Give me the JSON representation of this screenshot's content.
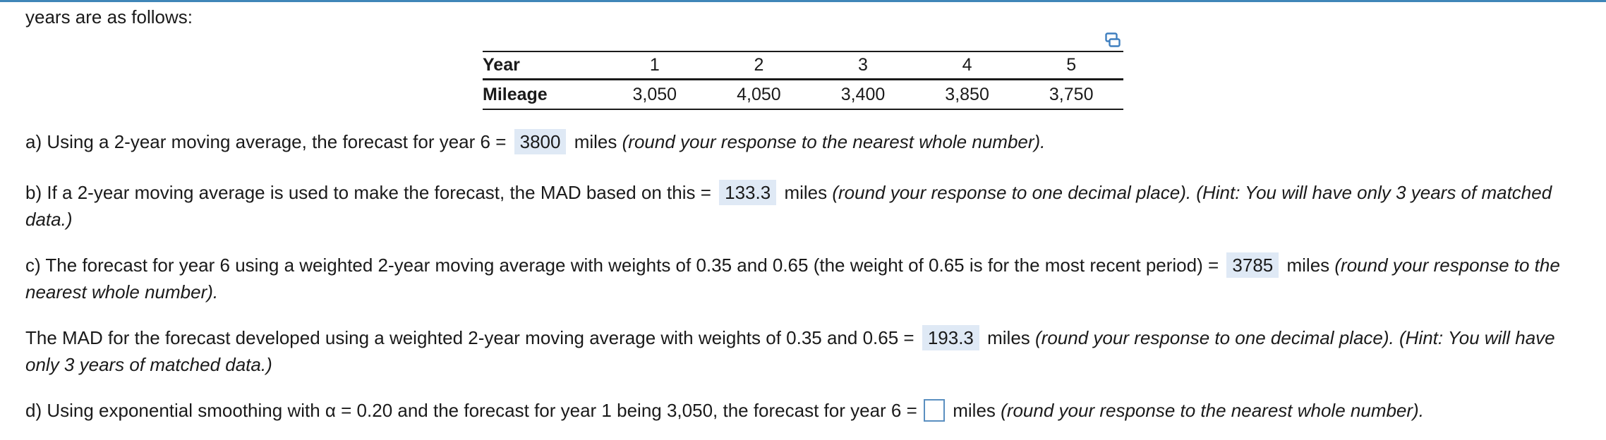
{
  "intro_text": "years are as follows:",
  "table": {
    "header_label": "Year",
    "row_label": "Mileage",
    "years": [
      "1",
      "2",
      "3",
      "4",
      "5"
    ],
    "mileage": [
      "3,050",
      "4,050",
      "3,400",
      "3,850",
      "3,750"
    ]
  },
  "part_a": {
    "prefix": "a) Using a 2-year moving average, the forecast for year 6 =",
    "answer": "3800",
    "unit": "miles",
    "note": "(round your response to the nearest whole number)."
  },
  "part_b": {
    "prefix": "b) If a 2-year moving average is used to make the forecast, the MAD based on this =",
    "answer": "133.3",
    "unit": "miles",
    "note": "(round your response to one decimal place).  (Hint: You will have only 3 years of matched data.)"
  },
  "part_c": {
    "prefix": "c) The forecast for year 6 using a weighted 2-year moving average with weights of 0.35 and 0.65 (the weight of 0.65 is for the most recent period) =",
    "answer": "3785",
    "unit": "miles",
    "note": "(round your response to the nearest whole number)."
  },
  "part_c_mad": {
    "prefix": "The MAD for the forecast developed using a weighted 2-year moving average with weights of 0.35 and 0.65 =",
    "answer": "193.3",
    "unit": "miles",
    "note": "(round your response to one decimal place).  (Hint: You will have only 3 years of matched data.)"
  },
  "part_d": {
    "prefix": "d) Using exponential smoothing with α = 0.20 and the forecast for year 1 being 3,050, the forecast for year 6 =",
    "input_value": "",
    "unit": "miles",
    "note": "(round your response to the nearest whole number)."
  },
  "icons": {
    "copy": "copy-icon"
  }
}
